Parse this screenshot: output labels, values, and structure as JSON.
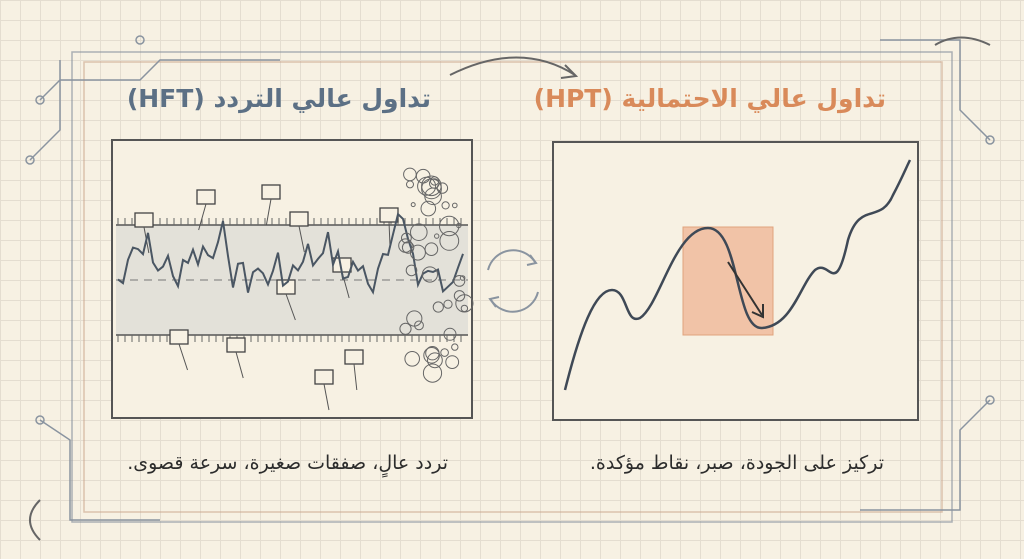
{
  "colors": {
    "hft": "#5c7085",
    "hpt": "#d98a5a",
    "ink": "#3d4550",
    "highlight": "#f0b494"
  },
  "hft": {
    "title": "تداول عالي التردد (HFT)",
    "caption": "تردد عالٍ، صفقات صغيرة، سرعة قصوى."
  },
  "hpt": {
    "title": "تداول عالي الاحتمالية (HPT)",
    "caption": "تركيز على الجودة، صبر، نقاط مؤكدة."
  }
}
